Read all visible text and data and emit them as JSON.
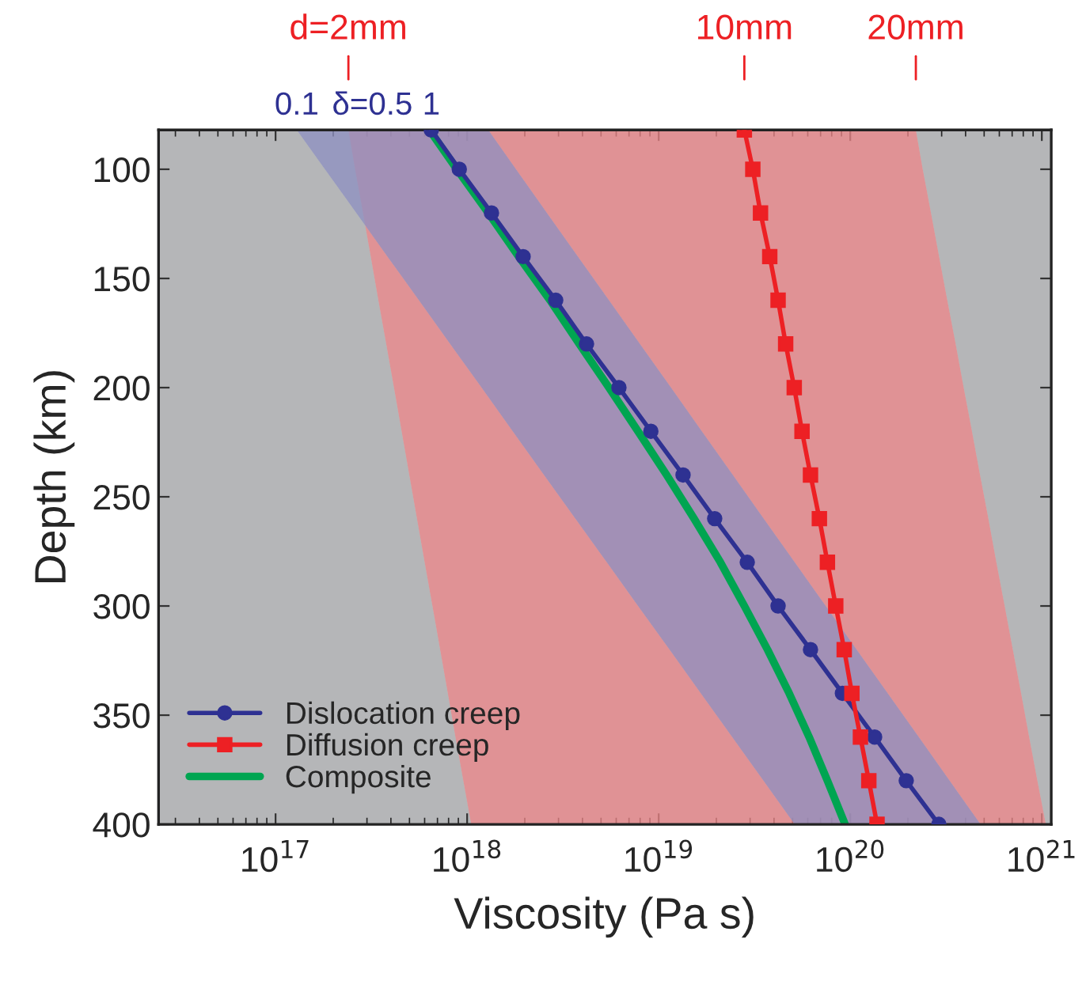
{
  "chart_data": {
    "type": "line",
    "orientation": "horizontal",
    "xlabel": "Viscosity (Pa s)",
    "ylabel": "Depth (km)",
    "log": "x",
    "xlim": [
      2.45e+16,
      1.12e+21
    ],
    "ylim": [
      400,
      82
    ],
    "xticks": [
      {
        "value": 1e+17,
        "label": "10$^{17}$"
      },
      {
        "value": 1e+18,
        "label": "10$^{18}$"
      },
      {
        "value": 1e+19,
        "label": "10$^{19}$"
      },
      {
        "value": 1e+20,
        "label": "10$^{20}$"
      },
      {
        "value": 1e+21,
        "label": "10$^{21}$"
      }
    ],
    "yticks": [
      100,
      150,
      200,
      250,
      300,
      350,
      400
    ],
    "annotations": [
      {
        "text": "0.1",
        "x": 1.29e+17,
        "y": 82
      },
      {
        "text": "δ=0.5",
        "x": 3.2e+17,
        "y": 82
      },
      {
        "text": "1",
        "x": 6.5e+17,
        "y": 82
      },
      {
        "text": "d=2mm",
        "x": 2.4e+17,
        "y": 82
      },
      {
        "text": "10mm",
        "x": 2.8e+19,
        "y": 82
      },
      {
        "text": "20mm",
        "x": 2.2e+20,
        "y": 82
      }
    ],
    "grid": false,
    "legend": "bottom left",
    "series": [
      {
        "name": "Dislocation creep",
        "color": "#2e3192",
        "marker": "circle",
        "x": [
          82,
          100,
          120,
          140,
          160,
          180,
          200,
          220,
          240,
          260,
          280,
          300,
          320,
          340,
          360,
          380,
          400
        ],
        "values": [
          6.5e+17,
          9.1e+17,
          1.34e+18,
          1.96e+18,
          2.9e+18,
          4.2e+18,
          6.2e+18,
          9.1e+18,
          1.34e+19,
          1.96e+19,
          2.9e+19,
          4.2e+19,
          6.2e+19,
          9.1e+19,
          1.34e+20,
          1.96e+20,
          2.9e+20
        ],
        "lower": [
          1.29e+17,
          1.81e+17,
          2.64e+17,
          3.84e+17,
          5.6e+17,
          8.15e+17,
          1.19e+18,
          1.73e+18,
          2.52e+18,
          3.67e+18,
          5.36e+18,
          7.8e+18,
          1.14e+19,
          1.66e+19,
          2.42e+19,
          3.52e+19,
          5.13e+19
        ],
        "upper": [
          1.29e+18,
          1.8e+18,
          2.61e+18,
          3.79e+18,
          5.5e+18,
          7.98e+18,
          1.16e+19,
          1.68e+19,
          2.44e+19,
          3.53e+19,
          5.13e+19,
          7.45e+19,
          1.08e+20,
          1.57e+20,
          2.28e+20,
          3.3e+20,
          4.79e+20
        ]
      },
      {
        "name": "Diffusion creep",
        "color": "#ed2024",
        "marker": "square",
        "x": [
          82,
          100,
          120,
          140,
          160,
          180,
          200,
          220,
          240,
          260,
          280,
          300,
          320,
          340,
          360,
          380,
          400
        ],
        "values": [
          2.8e+19,
          3.1e+19,
          3.4e+19,
          3.8e+19,
          4.2e+19,
          4.6e+19,
          5.1e+19,
          5.6e+19,
          6.2e+19,
          6.9e+19,
          7.6e+19,
          8.4e+19,
          9.3e+19,
          1.02e+20,
          1.13e+20,
          1.25e+20,
          1.38e+20
        ],
        "lower": [
          2.4e+17,
          2.6e+17,
          2.86e+17,
          3.14e+17,
          3.44e+17,
          3.78e+17,
          4.15e+17,
          4.55e+17,
          4.99e+17,
          5.47e+17,
          6e+17,
          6.59e+17,
          7.23e+17,
          7.93e+17,
          8.69e+17,
          9.55e+17,
          1.05e+18
        ],
        "upper": [
          2.2e+20,
          2.39e+20,
          2.64e+20,
          2.91e+20,
          3.21e+20,
          3.55e+20,
          3.91e+20,
          4.32e+20,
          4.76e+20,
          5.26e+20,
          5.79e+20,
          6.4e+20,
          7.06e+20,
          7.8e+20,
          8.59e+20,
          9.48e+20,
          1.05e+21
        ]
      },
      {
        "name": "Composite",
        "color": "#00a551",
        "x": [
          82,
          100,
          120,
          140,
          160,
          180,
          200,
          220,
          240,
          260,
          280,
          300,
          320,
          340,
          360,
          380,
          400
        ],
        "values": [
          6.35e+17,
          8.84e+17,
          1.29e+18,
          1.86e+18,
          2.71e+18,
          3.85e+18,
          5.5e+18,
          7.8e+18,
          1.1e+19,
          1.53e+19,
          2.1e+19,
          2.8e+19,
          3.7e+19,
          4.8e+19,
          6.1e+19,
          7.6e+19,
          9.4e+19
        ]
      }
    ]
  }
}
